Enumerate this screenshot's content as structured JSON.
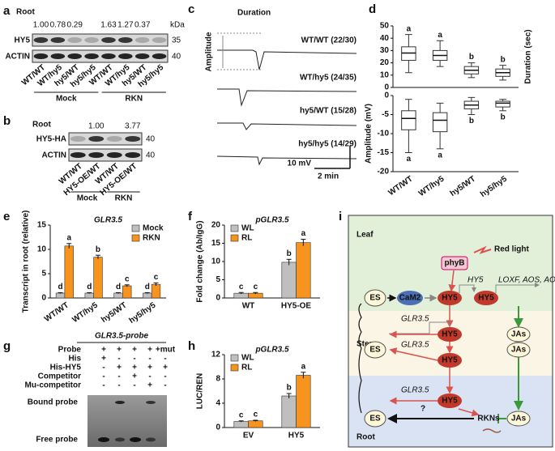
{
  "panel_labels": [
    "a",
    "b",
    "c",
    "d",
    "e",
    "f",
    "g",
    "h",
    "i"
  ],
  "blot_a": {
    "tissue": "Root",
    "values": [
      "1.00",
      "0.78",
      "0.29",
      "1.63",
      "1.27",
      "0.37"
    ],
    "kda": "kDa",
    "rows": [
      {
        "label": "HY5",
        "marker": "35"
      },
      {
        "label": "ACTIN",
        "marker": "40"
      }
    ],
    "lanes": [
      "WT/WT",
      "WT/hy5",
      "hy5/WT",
      "hy5/hy5",
      "WT/WT",
      "WT/hy5",
      "hy5/WT",
      "hy5/hy5"
    ],
    "groups": [
      "Mock",
      "RKN"
    ]
  },
  "blot_b": {
    "tissue": "Root",
    "values": [
      "1.00",
      "3.77"
    ],
    "rows": [
      {
        "label": "HY5-HA",
        "marker": "40"
      },
      {
        "label": "ACTIN",
        "marker": "40"
      }
    ],
    "lanes": [
      "WT/WT",
      "HY5-OE/WT",
      "WT/WT",
      "HY5-OE/WT"
    ],
    "groups": [
      "Mock",
      "RKN"
    ]
  },
  "traces_c": {
    "duration": "Duration",
    "amplitude": "Amplitude",
    "rows": [
      "WT/WT (22/30)",
      "WT/hy5 (24/35)",
      "hy5/WT (15/28)",
      "hy5/hy5 (14/29)"
    ],
    "scale_v": "10 mV",
    "scale_t": "2 min"
  },
  "emsa_g": {
    "title": "GLR3.5-probe",
    "rows": [
      {
        "label": "Probe",
        "cells": [
          "+",
          "+",
          "+",
          "+",
          "+mut"
        ]
      },
      {
        "label": "His",
        "cells": [
          "+",
          "-",
          "-",
          "-",
          "-"
        ]
      },
      {
        "label": "His-HY5",
        "cells": [
          "-",
          "+",
          "+",
          "+",
          "+"
        ]
      },
      {
        "label": "Competitor",
        "cells": [
          "-",
          "-",
          "+",
          "-",
          "-"
        ]
      },
      {
        "label": "Mu-competitor",
        "cells": [
          "-",
          "-",
          "-",
          "+",
          "-"
        ]
      }
    ],
    "bound": "Bound probe",
    "free": "Free probe"
  },
  "diagram_i": {
    "regions": [
      "Leaf",
      "Stem",
      "Root"
    ],
    "phyb": "phyB",
    "light": "Red light",
    "es": [
      "ES",
      "ES",
      "ES"
    ],
    "cam2": "CaM2",
    "hy5_nodes": [
      "HY5",
      "HY5",
      "HY5",
      "HY5",
      "HY5"
    ],
    "hy5_label": "HY5",
    "genes": "LOXF, AOS, AOC",
    "glr": [
      "GLR3.5",
      "GLR3.5",
      "GLR3.5"
    ],
    "jas": [
      "JAs",
      "JAs",
      "JAs"
    ],
    "rkns": "RKNs",
    "question": "?"
  },
  "chart_data": [
    {
      "type": "box",
      "ylabel": "Duration (sec)",
      "ylim": [
        0,
        50
      ],
      "yticks": [
        0,
        10,
        20,
        30,
        40,
        50
      ],
      "letter_position": "top",
      "boxes": [
        {
          "min": 12,
          "q1": 22,
          "median": 28,
          "q3": 33,
          "max": 43
        },
        {
          "min": 17,
          "q1": 22,
          "median": 26,
          "q3": 30,
          "max": 38
        },
        {
          "min": 8,
          "q1": 11,
          "median": 14,
          "q3": 17,
          "max": 20
        },
        {
          "min": 6,
          "q1": 9,
          "median": 12,
          "q3": 15,
          "max": 18
        }
      ],
      "letters": [
        "a",
        "a",
        "b",
        "b"
      ]
    },
    {
      "type": "box",
      "ylabel": "Amplitude (mV)",
      "ylim": [
        -20,
        0
      ],
      "yticks": [
        -20,
        -15,
        -10,
        -5,
        0
      ],
      "letter_position": "bottom",
      "categories": [
        "WT/WT",
        "WT/hy5",
        "hy5/WT",
        "hy5/hy5"
      ],
      "boxes": [
        {
          "min": -15,
          "q1": -9,
          "median": -6,
          "q3": -4,
          "max": -1
        },
        {
          "min": -14,
          "q1": -9.5,
          "median": -6.5,
          "q3": -4.5,
          "max": -2
        },
        {
          "min": -5,
          "q1": -3.5,
          "median": -2.5,
          "q3": -1.5,
          "max": -0.5
        },
        {
          "min": -4,
          "q1": -3,
          "median": -2,
          "q3": -1.5,
          "max": -1
        }
      ],
      "letters": [
        "a",
        "a",
        "b",
        "b"
      ]
    },
    {
      "type": "bar",
      "title": "GLR3.5",
      "ylabel": "Transcript in root (relative)",
      "legend": "top-right",
      "categories": [
        "WT/WT",
        "WT/hy5",
        "hy5/WT",
        "hy5/hy5"
      ],
      "ylim": [
        0,
        15
      ],
      "yticks": [
        0,
        5,
        10,
        15
      ],
      "series": [
        {
          "name": "Mock",
          "color": "#bfbfbf",
          "values": [
            1,
            1,
            1,
            1
          ],
          "errors": [
            0.1,
            0.1,
            0.1,
            0.1
          ],
          "letters": [
            "d",
            "d",
            "d",
            "d"
          ]
        },
        {
          "name": "RKN",
          "color": "#f7941d",
          "values": [
            10.7,
            8.4,
            2.5,
            2.8
          ],
          "errors": [
            0.5,
            0.4,
            0.2,
            0.3
          ],
          "letters": [
            "a",
            "b",
            "c",
            "c"
          ]
        }
      ]
    },
    {
      "type": "bar",
      "title": "pGLR3.5",
      "ylabel": "Fold change (Ab/IgG)",
      "legend": "top-left",
      "categories": [
        "WT",
        "HY5-OE"
      ],
      "ylim": [
        0,
        20
      ],
      "yticks": [
        0,
        5,
        10,
        15,
        20
      ],
      "series": [
        {
          "name": "WL",
          "color": "#bfbfbf",
          "values": [
            1.3,
            9.8
          ],
          "errors": [
            0.2,
            0.8
          ],
          "letters": [
            "c",
            "b"
          ]
        },
        {
          "name": "RL",
          "color": "#f7941d",
          "values": [
            1.3,
            15.2
          ],
          "errors": [
            0.2,
            0.9
          ],
          "letters": [
            "c",
            "a"
          ]
        }
      ]
    },
    {
      "type": "bar",
      "title": "pGLR3.5",
      "ylabel": "LUC/REN",
      "legend": "top-left",
      "categories": [
        "EV",
        "HY5"
      ],
      "ylim": [
        0,
        12
      ],
      "yticks": [
        0,
        4,
        8,
        12
      ],
      "series": [
        {
          "name": "WL",
          "color": "#bfbfbf",
          "values": [
            1.0,
            5.2
          ],
          "errors": [
            0.1,
            0.4
          ],
          "letters": [
            "c",
            "b"
          ]
        },
        {
          "name": "RL",
          "color": "#f7941d",
          "values": [
            1.1,
            8.6
          ],
          "errors": [
            0.1,
            0.5
          ],
          "letters": [
            "c",
            "a"
          ]
        }
      ]
    }
  ]
}
